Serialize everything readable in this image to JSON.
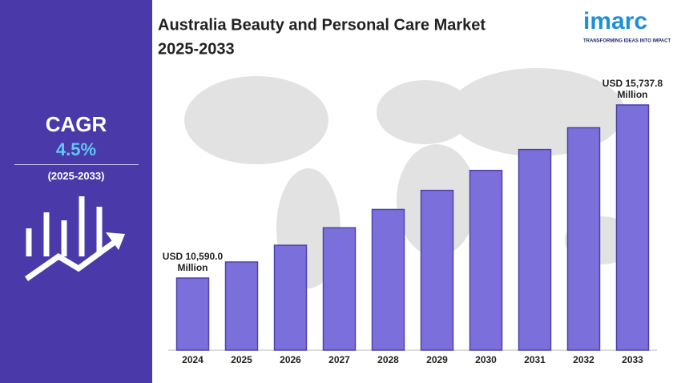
{
  "sidebar": {
    "label": "CAGR",
    "value": "4.5%",
    "period": "(2025-2033)"
  },
  "logo": {
    "name": "imarc",
    "tagline": "TRANSFORMING IDEAS INTO IMPACT"
  },
  "chart_data": {
    "type": "bar",
    "title": "Australia Beauty and Personal Care Market",
    "subtitle": "2025-2033",
    "categories": [
      "2024",
      "2025",
      "2026",
      "2027",
      "2028",
      "2029",
      "2030",
      "2031",
      "2032",
      "2033"
    ],
    "values": [
      10590.0,
      11067,
      11565,
      12085,
      12629,
      13197,
      13791,
      14412,
      15060,
      15737.8
    ],
    "value_labels": [
      "USD 10,590.0 Million",
      null,
      null,
      null,
      null,
      null,
      null,
      null,
      null,
      "USD 15,737.8 Million"
    ],
    "color": "#7b6fdc",
    "ylim": [
      8445,
      17000
    ]
  }
}
